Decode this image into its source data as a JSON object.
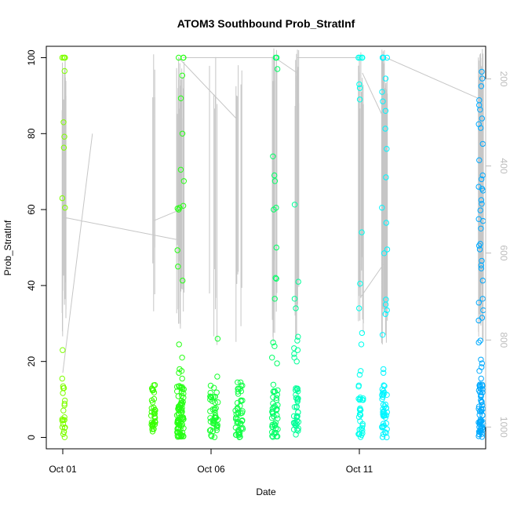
{
  "chart_data": {
    "type": "scatter",
    "title": "ATOM3 Southbound Prob_StratInf",
    "xlabel": "Date",
    "ylabel": "Prob_StratInf",
    "xlim": [
      0.0,
      14.6
    ],
    "ylim": [
      -3,
      103
    ],
    "x_ticks": [
      {
        "value": 0,
        "label": "Oct 01"
      },
      {
        "value": 5,
        "label": "Oct 06"
      },
      {
        "value": 10,
        "label": "Oct 11"
      }
    ],
    "y_ticks": [
      0,
      20,
      40,
      60,
      80,
      100
    ],
    "y2_axis": {
      "ticks": [
        200,
        400,
        600,
        800,
        1000
      ],
      "range_at_ylim": [
        1050,
        125
      ]
    },
    "line_color": "#c6c6c6",
    "clusters": [
      {
        "name": "Oct 01",
        "x": 0.03,
        "spread": 0.05,
        "color": "#7fff00",
        "high_values": [
          100,
          100,
          100,
          100,
          96.5,
          83,
          79.2,
          76.3,
          63,
          60.5,
          23,
          15.5,
          13
        ],
        "low_count": 20
      },
      {
        "name": "Oct 03",
        "x": 3.05,
        "spread": 0.07,
        "color": "#39ff00",
        "high_values": [],
        "low_count": 36
      },
      {
        "name": "Oct 04",
        "x": 3.97,
        "spread": 0.12,
        "color": "#26ff14",
        "high_values": [
          100,
          100,
          100,
          95.3,
          89.3,
          80,
          70.5,
          67.5,
          61,
          60.5,
          60,
          60.3,
          49.3,
          45,
          41.3,
          24.5,
          21,
          18,
          17.5,
          17,
          15.5
        ],
        "low_count": 80
      },
      {
        "name": "Oct 06",
        "x": 5.1,
        "spread": 0.14,
        "color": "#19ff30",
        "high_values": [
          26,
          16
        ],
        "low_count": 46
      },
      {
        "name": "Oct 07",
        "x": 5.95,
        "spread": 0.13,
        "color": "#14ff48",
        "high_values": [
          14.5,
          14.5
        ],
        "low_count": 48
      },
      {
        "name": "Oct 08",
        "x": 7.15,
        "spread": 0.1,
        "color": "#00ff66",
        "high_values": [
          100,
          100,
          97,
          74,
          69,
          67.5,
          60.5,
          60,
          50,
          42,
          41.8,
          36.5,
          25,
          24,
          21,
          19.5
        ],
        "low_count": 42
      },
      {
        "name": "Oct 09",
        "x": 7.87,
        "spread": 0.08,
        "color": "#00ff99",
        "high_values": [
          61.3,
          41,
          36.5,
          34,
          26.5,
          25.5,
          23.5,
          23,
          22,
          21,
          20
        ],
        "low_count": 36
      },
      {
        "name": "Oct 11",
        "x": 10.05,
        "spread": 0.08,
        "color": "#00ffee",
        "high_values": [
          100,
          100,
          100,
          100,
          100,
          100,
          93,
          92,
          89,
          54,
          40.5,
          34,
          27.5,
          24.5,
          17.5,
          16.5
        ],
        "low_count": 30
      },
      {
        "name": "Oct 12",
        "x": 10.85,
        "spread": 0.09,
        "color": "#00f5ff",
        "high_values": [
          100,
          100,
          100,
          100,
          100,
          100,
          94.5,
          91,
          88.5,
          86,
          81.3,
          76,
          68.5,
          60.5,
          56.5,
          49.5,
          48.5,
          36.3,
          35,
          33.5,
          32.5,
          27,
          18,
          17
        ],
        "low_count": 40
      },
      {
        "name": "Oct 14",
        "x": 14.1,
        "spread": 0.08,
        "color": "#00aaff",
        "high_values": [
          96.3,
          94.5,
          92.5,
          88.8,
          87.5,
          86.3,
          84,
          82.5,
          81.5,
          77.3,
          73,
          69,
          68,
          66,
          65.5,
          65,
          62.5,
          61.5,
          59.8,
          57.5,
          57,
          55,
          51,
          50.5,
          49.5,
          46.5,
          45.3,
          44.5,
          41.3,
          36.5,
          35.5,
          33.5,
          31.5,
          30.8,
          25.5,
          25,
          20.5,
          19.5,
          18.5,
          17.5,
          15.5,
          13.5
        ],
        "low_count": 56
      }
    ]
  }
}
